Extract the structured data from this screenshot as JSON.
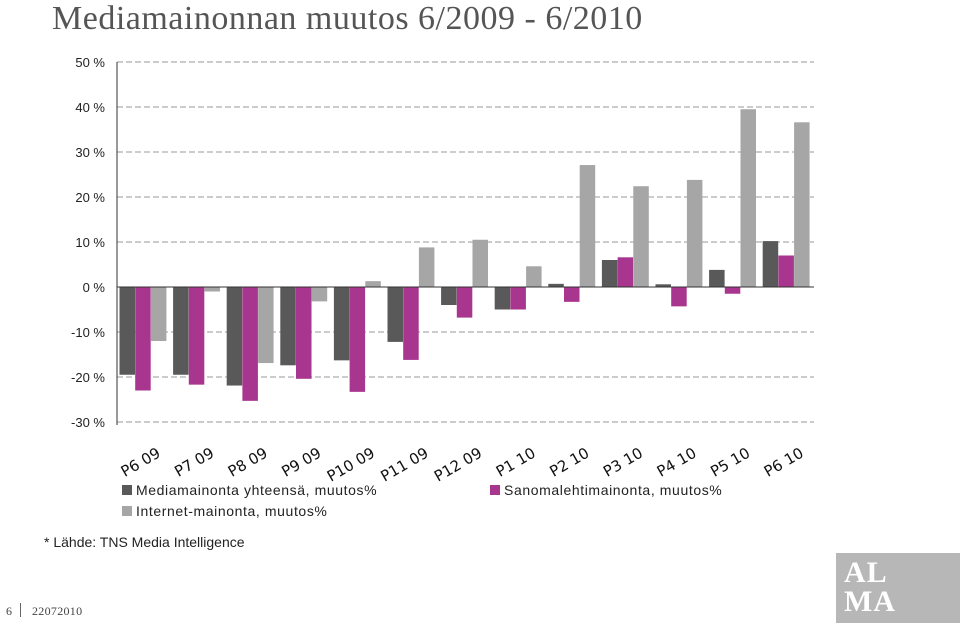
{
  "title": "Mediamainonnan muutos 6/2009 - 6/2010",
  "source": "* Lähde: TNS Media Intelligence",
  "footer": {
    "page": "6",
    "date": "22072010"
  },
  "logo": {
    "line1": "AL",
    "line2": "MA"
  },
  "colors": {
    "media": "#595959",
    "sanoma": "#a8358e",
    "internet": "#a6a6a6",
    "grid": "#9a9a9a"
  },
  "chart_data": {
    "type": "bar",
    "title": "Mediamainonnan muutos 6/2009 - 6/2010",
    "xlabel": "",
    "ylabel": "",
    "ylim": [
      -30,
      50
    ],
    "yticks": [
      50,
      40,
      30,
      20,
      10,
      0,
      -10,
      -20,
      -30
    ],
    "ytick_labels": [
      "50 %",
      "40 %",
      "30 %",
      "20 %",
      "10 %",
      "0 %",
      "-10 %",
      "-20 %",
      "-30 %"
    ],
    "grid": "horizontal dashed",
    "legend": "bottom",
    "categories": [
      "P6 09",
      "P7 09",
      "P8 09",
      "P9 09",
      "P10 09",
      "P11 09",
      "P12 09",
      "P1 10",
      "P2 10",
      "P3 10",
      "P4 10",
      "P5 10",
      "P6 10"
    ],
    "series": [
      {
        "name": "Mediamainonta yhteensä, muutos%",
        "color": "#595959",
        "values": [
          -19.5,
          -19.5,
          -21.9,
          -17.4,
          -16.3,
          -12.2,
          -4.0,
          -5.0,
          0.7,
          6.0,
          0.6,
          3.8,
          10.2
        ]
      },
      {
        "name": "Sanomalehtimainonta, muutos%",
        "color": "#a8358e",
        "values": [
          -23.0,
          -21.7,
          -25.3,
          -20.4,
          -23.3,
          -16.2,
          -6.8,
          -5.0,
          -3.3,
          6.6,
          -4.3,
          -1.5,
          7.0
        ]
      },
      {
        "name": "Internet-mainonta, muutos%",
        "color": "#a6a6a6",
        "values": [
          -12.0,
          -1.0,
          -16.9,
          -3.2,
          1.3,
          8.8,
          10.5,
          4.6,
          27.1,
          22.4,
          23.8,
          39.5,
          36.6
        ]
      }
    ]
  }
}
